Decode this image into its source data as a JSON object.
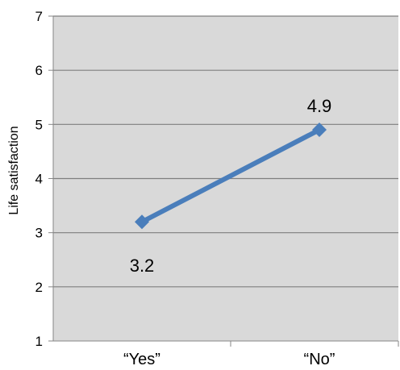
{
  "chart_data": {
    "type": "line",
    "title": "",
    "xlabel": "",
    "ylabel": "Life satisfaction",
    "categories": [
      "“Yes”",
      "“No”"
    ],
    "series": [
      {
        "values": [
          3.2,
          4.9
        ]
      }
    ],
    "data_labels": [
      "3.2",
      "4.9"
    ],
    "ylim": [
      1,
      7
    ],
    "yticks": [
      "1",
      "2",
      "3",
      "4",
      "5",
      "6",
      "7"
    ],
    "grid": true,
    "legend": "none",
    "colors": {
      "line": "#4a7ebb",
      "marker": "#4a7ebb",
      "plot_background": "#d9d9d9",
      "gridline": "#7f7f7f",
      "axis": "#868686"
    }
  }
}
